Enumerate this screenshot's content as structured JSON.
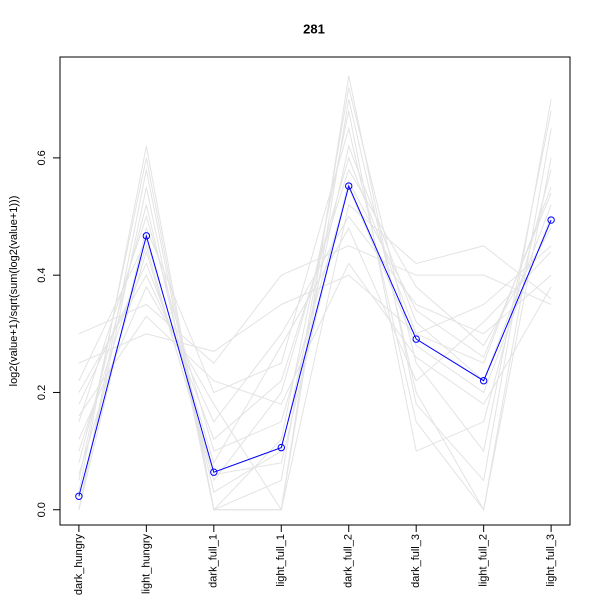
{
  "chart_data": {
    "type": "line",
    "title": "281",
    "y_label": "log2(value+1)/sqrt(sum(log2(value+1)))",
    "categories": [
      "dark_hungry",
      "light_hungry",
      "dark_full_1",
      "light_full_1",
      "dark_full_2",
      "dark_full_3",
      "light_full_2",
      "light_full_3"
    ],
    "ylim": [
      -0.026,
      0.772
    ],
    "yticks": [
      {
        "value": 0,
        "label": "0.0"
      },
      0.2,
      0.4,
      0.6
    ],
    "series": [
      {
        "color": "#e3e3e3",
        "values": [
          0.1,
          0.45,
          0.05,
          0.2,
          0.6,
          0.3,
          0.25,
          0.55
        ]
      },
      {
        "color": "#e3e3e3",
        "values": [
          0.0,
          0.55,
          0.0,
          0.0,
          0.7,
          0.2,
          0.0,
          0.65
        ]
      },
      {
        "color": "#e3e3e3",
        "values": [
          0.2,
          0.4,
          0.15,
          0.3,
          0.5,
          0.35,
          0.3,
          0.4
        ]
      },
      {
        "color": "#e3e3e3",
        "values": [
          0.3,
          0.35,
          0.25,
          0.4,
          0.45,
          0.4,
          0.4,
          0.35
        ]
      },
      {
        "color": "#e3e3e3",
        "values": [
          0.05,
          0.6,
          0.0,
          0.05,
          0.72,
          0.25,
          0.1,
          0.68
        ]
      },
      {
        "color": "#e3e3e3",
        "values": [
          0.15,
          0.5,
          0.1,
          0.15,
          0.55,
          0.28,
          0.2,
          0.5
        ]
      },
      {
        "color": "#e3e3e3",
        "values": [
          0.0,
          0.48,
          0.2,
          0.25,
          0.65,
          0.15,
          0.0,
          0.6
        ]
      },
      {
        "color": "#e3e3e3",
        "values": [
          0.25,
          0.3,
          0.27,
          0.35,
          0.4,
          0.3,
          0.35,
          0.45
        ]
      },
      {
        "color": "#e3e3e3",
        "values": [
          0.08,
          0.52,
          0.03,
          0.1,
          0.62,
          0.32,
          0.22,
          0.52
        ]
      },
      {
        "color": "#e3e3e3",
        "values": [
          0.18,
          0.42,
          0.12,
          0.22,
          0.58,
          0.38,
          0.28,
          0.48
        ]
      },
      {
        "color": "#e3e3e3",
        "values": [
          0.0,
          0.58,
          0.0,
          0.12,
          0.68,
          0.1,
          0.15,
          0.58
        ]
      },
      {
        "color": "#e3e3e3",
        "values": [
          0.12,
          0.38,
          0.18,
          0.0,
          0.52,
          0.42,
          0.45,
          0.36
        ]
      },
      {
        "color": "#e3e3e3",
        "values": [
          0.22,
          0.46,
          0.08,
          0.28,
          0.48,
          0.22,
          0.32,
          0.44
        ]
      },
      {
        "color": "#e3e3e3",
        "values": [
          0.03,
          0.62,
          0.0,
          0.0,
          0.74,
          0.18,
          0.05,
          0.7
        ]
      },
      {
        "color": "#e3e3e3",
        "values": [
          0.16,
          0.33,
          0.22,
          0.18,
          0.42,
          0.26,
          0.18,
          0.38
        ]
      },
      {
        "color": "#e3e3e3",
        "values": [
          0.06,
          0.44,
          0.06,
          0.08,
          0.56,
          0.34,
          0.26,
          0.54
        ]
      },
      {
        "color": "#0000ff",
        "marker": "circle",
        "values": [
          0.023,
          0.467,
          0.064,
          0.106,
          0.552,
          0.291,
          0.22,
          0.494
        ]
      }
    ]
  }
}
